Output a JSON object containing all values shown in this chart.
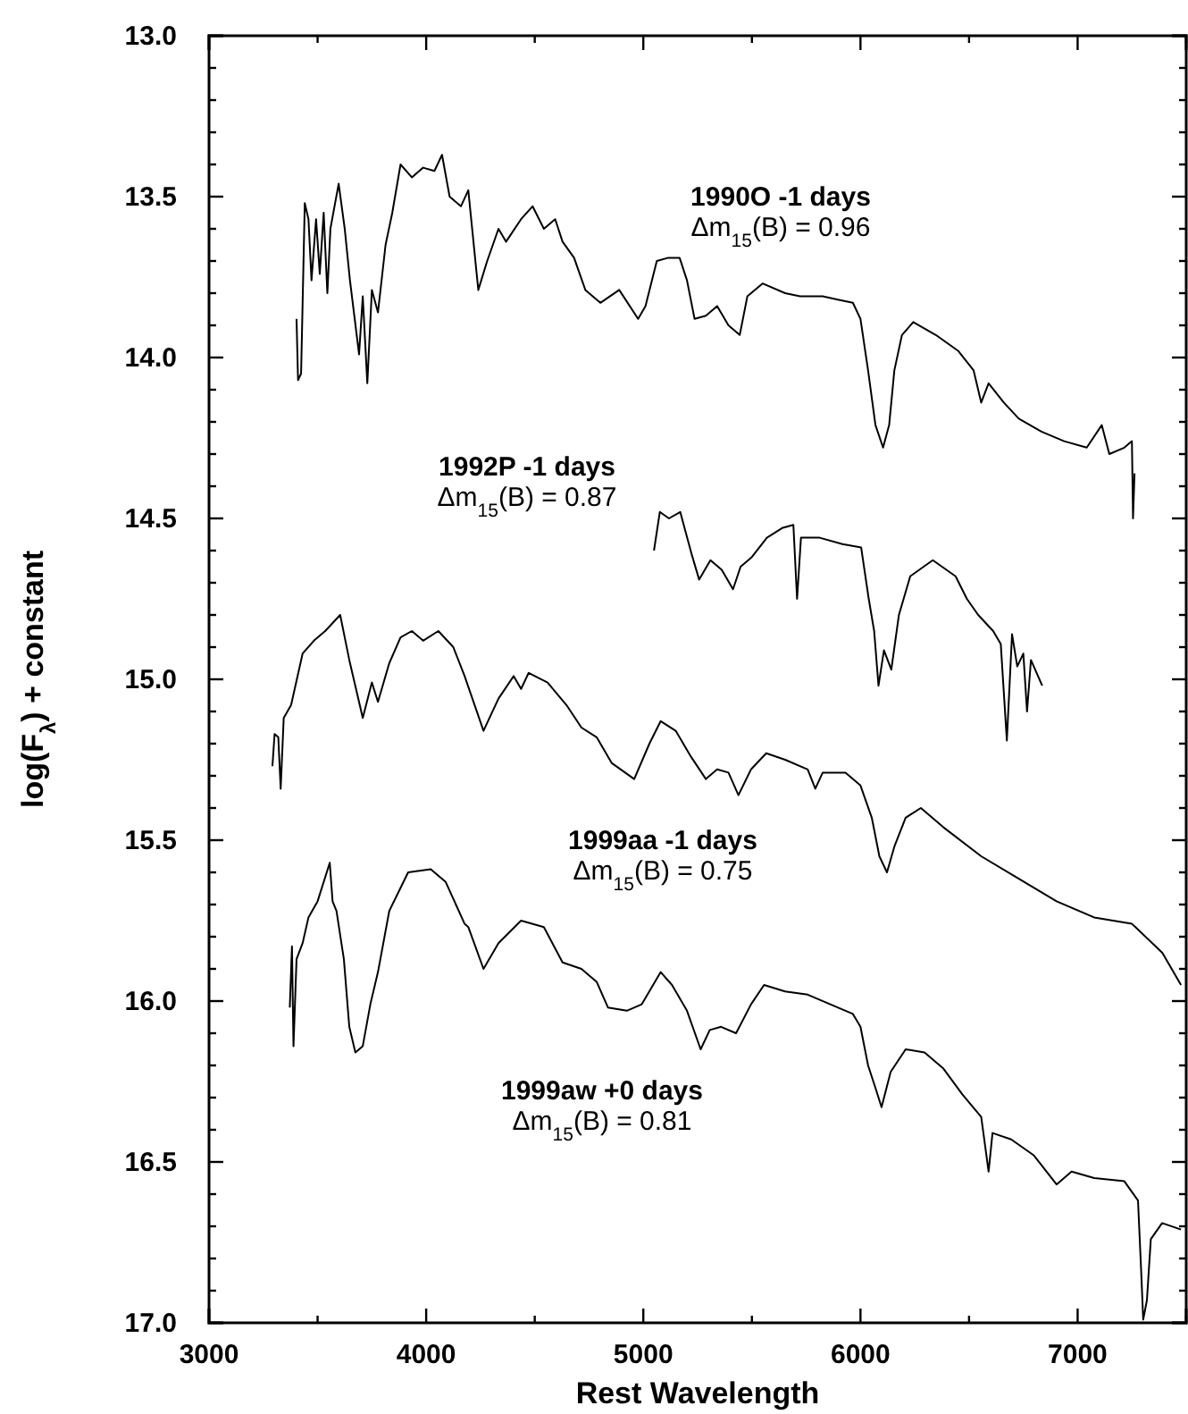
{
  "chart_data": {
    "type": "line",
    "xlabel": "Rest Wavelength",
    "ylabel": "log(F$_{λ}$) + constant",
    "xlim": [
      3000,
      7500
    ],
    "ylim": [
      17.0,
      13.0
    ],
    "xticks": [
      3000,
      {
        "value": 3500,
        "label": null
      },
      4000,
      {
        "value": 4500,
        "label": null
      },
      5000,
      {
        "value": 5500,
        "label": null
      },
      6000,
      {
        "value": 6500,
        "label": null
      },
      7000,
      {
        "value": 7500,
        "label": null
      }
    ],
    "yticks": [
      {
        "value": 13,
        "label": "13.0"
      },
      {
        "value": 13.1,
        "label": null
      },
      {
        "value": 13.2,
        "label": null
      },
      {
        "value": 13.3,
        "label": null
      },
      {
        "value": 13.4,
        "label": null
      },
      13.5,
      {
        "value": 13.6,
        "label": null
      },
      {
        "value": 13.7,
        "label": null
      },
      {
        "value": 13.8,
        "label": null
      },
      {
        "value": 13.9,
        "label": null
      },
      {
        "value": 14,
        "label": "14.0"
      },
      {
        "value": 14.1,
        "label": null
      },
      {
        "value": 14.2,
        "label": null
      },
      {
        "value": 14.3,
        "label": null
      },
      {
        "value": 14.4,
        "label": null
      },
      14.5,
      {
        "value": 14.6,
        "label": null
      },
      {
        "value": 14.7,
        "label": null
      },
      {
        "value": 14.8,
        "label": null
      },
      {
        "value": 14.9,
        "label": null
      },
      {
        "value": 15,
        "label": "15.0"
      },
      {
        "value": 15.1,
        "label": null
      },
      {
        "value": 15.2,
        "label": null
      },
      {
        "value": 15.3,
        "label": null
      },
      {
        "value": 15.4,
        "label": null
      },
      15.5,
      {
        "value": 15.6,
        "label": null
      },
      {
        "value": 15.7,
        "label": null
      },
      {
        "value": 15.8,
        "label": null
      },
      {
        "value": 15.9,
        "label": null
      },
      {
        "value": 16,
        "label": "16.0"
      },
      {
        "value": 16.1,
        "label": null
      },
      {
        "value": 16.2,
        "label": null
      },
      {
        "value": 16.3,
        "label": null
      },
      {
        "value": 16.4,
        "label": null
      },
      16.5,
      {
        "value": 16.6,
        "label": null
      },
      {
        "value": 16.7,
        "label": null
      },
      {
        "value": 16.8,
        "label": null
      },
      {
        "value": 16.9,
        "label": null
      },
      {
        "value": 17,
        "label": "17.0"
      }
    ],
    "grid": false,
    "legend": false,
    "marker": "none",
    "line_style": "solid",
    "series": [
      {
        "name": "1990O -1 days",
        "color": "#000000",
        "x": [
          3403,
          3410,
          3424,
          3441,
          3458,
          3472,
          3493,
          3510,
          3528,
          3545,
          3559,
          3597,
          3625,
          3649,
          3691,
          3708,
          3729,
          3750,
          3778,
          3813,
          3844,
          3882,
          3934,
          3986,
          4038,
          4073,
          4108,
          4160,
          4194,
          4240,
          4281,
          4333,
          4368,
          4437,
          4490,
          4542,
          4594,
          4628,
          4681,
          4733,
          4802,
          4889,
          4976,
          5010,
          5062,
          5115,
          5167,
          5201,
          5236,
          5288,
          5340,
          5392,
          5444,
          5479,
          5549,
          5653,
          5722,
          5826,
          5896,
          5965,
          6000,
          6035,
          6069,
          6104,
          6132,
          6156,
          6191,
          6243,
          6347,
          6451,
          6521,
          6556,
          6590,
          6660,
          6729,
          6833,
          6938,
          7042,
          7111,
          7146,
          7215,
          7250,
          7255,
          7262
        ],
        "values": [
          13.88,
          14.07,
          14.05,
          13.52,
          13.57,
          13.76,
          13.57,
          13.74,
          13.55,
          13.8,
          13.6,
          13.46,
          13.6,
          13.76,
          13.99,
          13.81,
          14.08,
          13.79,
          13.86,
          13.65,
          13.55,
          13.4,
          13.44,
          13.41,
          13.42,
          13.37,
          13.5,
          13.53,
          13.48,
          13.79,
          13.7,
          13.6,
          13.64,
          13.57,
          13.53,
          13.6,
          13.57,
          13.64,
          13.69,
          13.79,
          13.83,
          13.79,
          13.88,
          13.84,
          13.7,
          13.69,
          13.69,
          13.76,
          13.88,
          13.87,
          13.84,
          13.9,
          13.93,
          13.81,
          13.77,
          13.8,
          13.81,
          13.81,
          13.82,
          13.83,
          13.88,
          14.04,
          14.21,
          14.28,
          14.21,
          14.04,
          13.93,
          13.89,
          13.93,
          13.98,
          14.04,
          14.14,
          14.08,
          14.14,
          14.19,
          14.23,
          14.26,
          14.28,
          14.21,
          14.3,
          14.28,
          14.26,
          14.5,
          14.36
        ]
      },
      {
        "name": "1992P -1 days",
        "color": "#000000",
        "x": [
          5049,
          5076,
          5118,
          5170,
          5194,
          5222,
          5257,
          5309,
          5361,
          5413,
          5448,
          5500,
          5569,
          5639,
          5691,
          5708,
          5726,
          5812,
          5917,
          6003,
          6038,
          6063,
          6083,
          6108,
          6142,
          6177,
          6229,
          6333,
          6438,
          6490,
          6542,
          6611,
          6646,
          6674,
          6698,
          6722,
          6750,
          6767,
          6785,
          6837
        ],
        "values": [
          14.6,
          14.48,
          14.5,
          14.48,
          14.54,
          14.61,
          14.69,
          14.63,
          14.66,
          14.72,
          14.65,
          14.62,
          14.56,
          14.53,
          14.52,
          14.75,
          14.56,
          14.56,
          14.58,
          14.59,
          14.75,
          14.85,
          15.02,
          14.91,
          14.97,
          14.8,
          14.68,
          14.63,
          14.68,
          14.75,
          14.8,
          14.85,
          14.89,
          15.19,
          14.86,
          14.96,
          14.92,
          15.1,
          14.94,
          15.02
        ]
      },
      {
        "name": "1999aa -1 days",
        "color": "#000000",
        "x": [
          3292,
          3302,
          3319,
          3330,
          3344,
          3378,
          3431,
          3483,
          3535,
          3604,
          3646,
          3708,
          3750,
          3778,
          3830,
          3882,
          3934,
          3986,
          4056,
          4125,
          4177,
          4264,
          4333,
          4403,
          4437,
          4472,
          4559,
          4646,
          4715,
          4785,
          4854,
          4958,
          5028,
          5080,
          5149,
          5219,
          5288,
          5340,
          5392,
          5438,
          5496,
          5566,
          5653,
          5757,
          5792,
          5826,
          5931,
          6000,
          6052,
          6087,
          6122,
          6156,
          6208,
          6278,
          6382,
          6556,
          6729,
          6903,
          7076,
          7250,
          7390,
          7476
        ],
        "values": [
          15.27,
          15.17,
          15.18,
          15.34,
          15.12,
          15.08,
          14.92,
          14.88,
          14.85,
          14.8,
          14.94,
          15.12,
          15.01,
          15.07,
          14.95,
          14.87,
          14.85,
          14.88,
          14.85,
          14.9,
          14.99,
          15.16,
          15.06,
          14.99,
          15.03,
          14.98,
          15.01,
          15.08,
          15.15,
          15.18,
          15.26,
          15.31,
          15.2,
          15.13,
          15.16,
          15.24,
          15.31,
          15.28,
          15.29,
          15.36,
          15.28,
          15.23,
          15.25,
          15.28,
          15.34,
          15.29,
          15.29,
          15.33,
          15.43,
          15.55,
          15.6,
          15.52,
          15.43,
          15.4,
          15.46,
          15.55,
          15.62,
          15.69,
          15.74,
          15.76,
          15.85,
          15.95
        ]
      },
      {
        "name": "1999aw +0 days",
        "color": "#000000",
        "x": [
          3372,
          3382,
          3389,
          3403,
          3431,
          3458,
          3500,
          3556,
          3569,
          3587,
          3621,
          3646,
          3674,
          3708,
          3743,
          3778,
          3830,
          3917,
          4021,
          4090,
          4177,
          4194,
          4264,
          4333,
          4437,
          4542,
          4628,
          4715,
          4785,
          4837,
          4924,
          4993,
          5080,
          5132,
          5201,
          5264,
          5306,
          5358,
          5427,
          5496,
          5556,
          5653,
          5757,
          5861,
          5965,
          6000,
          6035,
          6069,
          6097,
          6139,
          6208,
          6295,
          6382,
          6469,
          6556,
          6590,
          6608,
          6694,
          6799,
          6903,
          6972,
          7076,
          7215,
          7278,
          7292,
          7302,
          7319,
          7337,
          7389,
          7476
        ],
        "values": [
          16.02,
          15.83,
          16.14,
          15.87,
          15.82,
          15.74,
          15.69,
          15.57,
          15.69,
          15.72,
          15.87,
          16.08,
          16.16,
          16.14,
          16.01,
          15.91,
          15.72,
          15.6,
          15.59,
          15.63,
          15.76,
          15.77,
          15.9,
          15.82,
          15.75,
          15.77,
          15.88,
          15.9,
          15.94,
          16.02,
          16.03,
          16.01,
          15.91,
          15.95,
          16.03,
          16.15,
          16.09,
          16.08,
          16.1,
          16.01,
          15.95,
          15.97,
          15.98,
          16.01,
          16.04,
          16.08,
          16.2,
          16.27,
          16.33,
          16.22,
          16.15,
          16.16,
          16.21,
          16.29,
          16.36,
          16.53,
          16.41,
          16.43,
          16.48,
          16.57,
          16.53,
          16.55,
          16.56,
          16.62,
          16.83,
          16.99,
          16.93,
          16.74,
          16.69,
          16.71
        ]
      }
    ],
    "annotations": [
      "Δm$_{15}$(B) = 0.96",
      "Δm$_{15}$(B) = 0.87",
      "Δm$_{15}$(B) = 0.75",
      "Δm$_{15}$(B) = 0.81"
    ]
  }
}
